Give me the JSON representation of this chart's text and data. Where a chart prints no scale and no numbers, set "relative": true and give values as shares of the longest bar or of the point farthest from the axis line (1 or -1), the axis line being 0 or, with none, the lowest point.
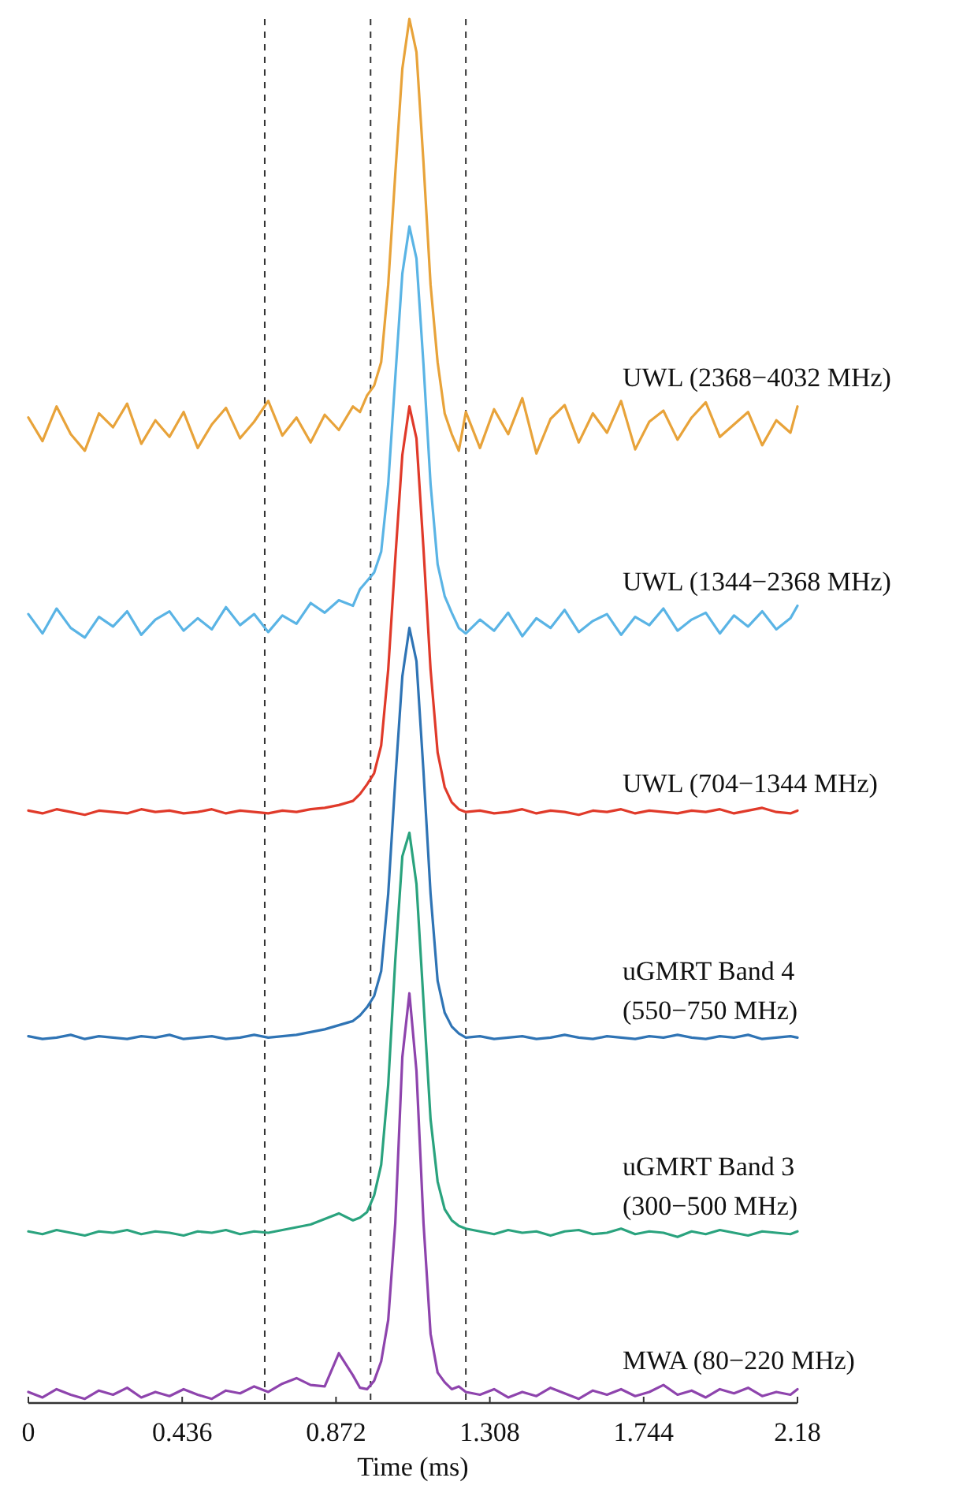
{
  "chart_data": {
    "type": "line",
    "xlabel": "Time (ms)",
    "relative": true,
    "grid": false,
    "line_style": "solid",
    "marker": "none",
    "xlim": [
      0,
      2.18
    ],
    "xticks": [
      0,
      0.436,
      0.872,
      1.308,
      1.744,
      2.18
    ],
    "x": [
      0,
      0.04,
      0.08,
      0.12,
      0.16,
      0.2,
      0.24,
      0.28,
      0.32,
      0.36,
      0.4,
      0.44,
      0.48,
      0.52,
      0.56,
      0.6,
      0.64,
      0.68,
      0.72,
      0.76,
      0.8,
      0.84,
      0.88,
      0.92,
      0.94,
      0.96,
      0.98,
      1.0,
      1.02,
      1.04,
      1.06,
      1.08,
      1.1,
      1.12,
      1.14,
      1.16,
      1.18,
      1.2,
      1.22,
      1.24,
      1.28,
      1.32,
      1.36,
      1.4,
      1.44,
      1.48,
      1.52,
      1.56,
      1.6,
      1.64,
      1.68,
      1.72,
      1.76,
      1.8,
      1.84,
      1.88,
      1.92,
      1.96,
      2.0,
      2.04,
      2.08,
      2.12,
      2.16,
      2.18
    ],
    "ref_lines": [
      {
        "axis": "x",
        "value": 0.67,
        "color": "#333333",
        "line_style": "dashed"
      },
      {
        "axis": "x",
        "value": 0.97,
        "color": "#333333",
        "line_style": "dashed"
      },
      {
        "axis": "x",
        "value": 1.24,
        "color": "#333333",
        "line_style": "dashed"
      }
    ],
    "series": [
      {
        "name": "UWL (2368−4032 MHz)",
        "color": "#e8a33a",
        "values": [
          0.712,
          0.695,
          0.72,
          0.7,
          0.688,
          0.715,
          0.705,
          0.722,
          0.693,
          0.71,
          0.698,
          0.716,
          0.69,
          0.707,
          0.719,
          0.697,
          0.709,
          0.724,
          0.699,
          0.712,
          0.694,
          0.714,
          0.703,
          0.72,
          0.716,
          0.728,
          0.735,
          0.752,
          0.808,
          0.888,
          0.964,
          1.0,
          0.976,
          0.896,
          0.808,
          0.752,
          0.715,
          0.7,
          0.688,
          0.716,
          0.69,
          0.718,
          0.7,
          0.726,
          0.686,
          0.711,
          0.721,
          0.694,
          0.715,
          0.701,
          0.724,
          0.689,
          0.709,
          0.717,
          0.696,
          0.712,
          0.723,
          0.698,
          0.707,
          0.716,
          0.692,
          0.71,
          0.701,
          0.72
        ]
      },
      {
        "name": "UWL (1344−2368 MHz)",
        "color": "#5ab4e5",
        "values": [
          0.57,
          0.556,
          0.574,
          0.56,
          0.553,
          0.568,
          0.561,
          0.572,
          0.555,
          0.566,
          0.572,
          0.558,
          0.567,
          0.559,
          0.575,
          0.562,
          0.57,
          0.557,
          0.569,
          0.563,
          0.578,
          0.571,
          0.58,
          0.576,
          0.588,
          0.594,
          0.6,
          0.615,
          0.664,
          0.741,
          0.816,
          0.85,
          0.827,
          0.75,
          0.664,
          0.606,
          0.583,
          0.571,
          0.56,
          0.556,
          0.566,
          0.558,
          0.571,
          0.554,
          0.567,
          0.56,
          0.573,
          0.557,
          0.565,
          0.57,
          0.555,
          0.568,
          0.562,
          0.574,
          0.558,
          0.566,
          0.571,
          0.556,
          0.569,
          0.561,
          0.572,
          0.559,
          0.567,
          0.576
        ]
      },
      {
        "name": "UWL (704−1344 MHz)",
        "color": "#e03a2a",
        "values": [
          0.428,
          0.426,
          0.429,
          0.427,
          0.425,
          0.428,
          0.427,
          0.426,
          0.429,
          0.427,
          0.428,
          0.426,
          0.427,
          0.429,
          0.426,
          0.428,
          0.427,
          0.426,
          0.428,
          0.427,
          0.429,
          0.43,
          0.432,
          0.435,
          0.44,
          0.447,
          0.455,
          0.475,
          0.53,
          0.61,
          0.685,
          0.72,
          0.697,
          0.617,
          0.53,
          0.47,
          0.445,
          0.434,
          0.429,
          0.427,
          0.428,
          0.426,
          0.427,
          0.429,
          0.426,
          0.428,
          0.427,
          0.425,
          0.428,
          0.427,
          0.429,
          0.426,
          0.428,
          0.427,
          0.426,
          0.428,
          0.427,
          0.429,
          0.426,
          0.428,
          0.43,
          0.427,
          0.426,
          0.428
        ]
      },
      {
        "name": "uGMRT Band 4 (550−750 MHz)",
        "color": "#2f74b5",
        "values": [
          0.265,
          0.263,
          0.264,
          0.266,
          0.263,
          0.265,
          0.264,
          0.263,
          0.265,
          0.264,
          0.266,
          0.263,
          0.264,
          0.265,
          0.263,
          0.264,
          0.266,
          0.264,
          0.265,
          0.266,
          0.268,
          0.27,
          0.273,
          0.276,
          0.28,
          0.286,
          0.294,
          0.312,
          0.368,
          0.45,
          0.525,
          0.56,
          0.536,
          0.456,
          0.368,
          0.305,
          0.282,
          0.272,
          0.267,
          0.264,
          0.265,
          0.263,
          0.264,
          0.265,
          0.263,
          0.264,
          0.266,
          0.264,
          0.263,
          0.265,
          0.264,
          0.263,
          0.265,
          0.264,
          0.266,
          0.264,
          0.263,
          0.265,
          0.264,
          0.266,
          0.263,
          0.264,
          0.265,
          0.264
        ]
      },
      {
        "name": "uGMRT Band 3 (300−500 MHz)",
        "color": "#2aa37e",
        "values": [
          0.124,
          0.122,
          0.125,
          0.123,
          0.121,
          0.124,
          0.123,
          0.125,
          0.122,
          0.124,
          0.123,
          0.121,
          0.124,
          0.123,
          0.125,
          0.122,
          0.124,
          0.123,
          0.125,
          0.127,
          0.129,
          0.133,
          0.137,
          0.132,
          0.134,
          0.138,
          0.15,
          0.172,
          0.23,
          0.32,
          0.395,
          0.412,
          0.375,
          0.29,
          0.205,
          0.16,
          0.14,
          0.132,
          0.128,
          0.126,
          0.124,
          0.122,
          0.125,
          0.123,
          0.124,
          0.121,
          0.124,
          0.125,
          0.122,
          0.123,
          0.126,
          0.122,
          0.124,
          0.123,
          0.12,
          0.124,
          0.122,
          0.125,
          0.123,
          0.121,
          0.124,
          0.123,
          0.122,
          0.124
        ]
      },
      {
        "name": "MWA (80−220 MHz)",
        "color": "#8e44ad",
        "values": [
          0.008,
          0.004,
          0.01,
          0.006,
          0.003,
          0.009,
          0.006,
          0.011,
          0.004,
          0.008,
          0.005,
          0.01,
          0.006,
          0.003,
          0.009,
          0.007,
          0.012,
          0.008,
          0.014,
          0.018,
          0.013,
          0.012,
          0.036,
          0.02,
          0.011,
          0.01,
          0.016,
          0.03,
          0.06,
          0.13,
          0.25,
          0.296,
          0.24,
          0.13,
          0.05,
          0.022,
          0.015,
          0.01,
          0.012,
          0.008,
          0.006,
          0.01,
          0.004,
          0.008,
          0.005,
          0.011,
          0.007,
          0.003,
          0.009,
          0.006,
          0.01,
          0.005,
          0.008,
          0.013,
          0.006,
          0.009,
          0.004,
          0.01,
          0.007,
          0.011,
          0.005,
          0.008,
          0.006,
          0.01
        ]
      }
    ]
  }
}
